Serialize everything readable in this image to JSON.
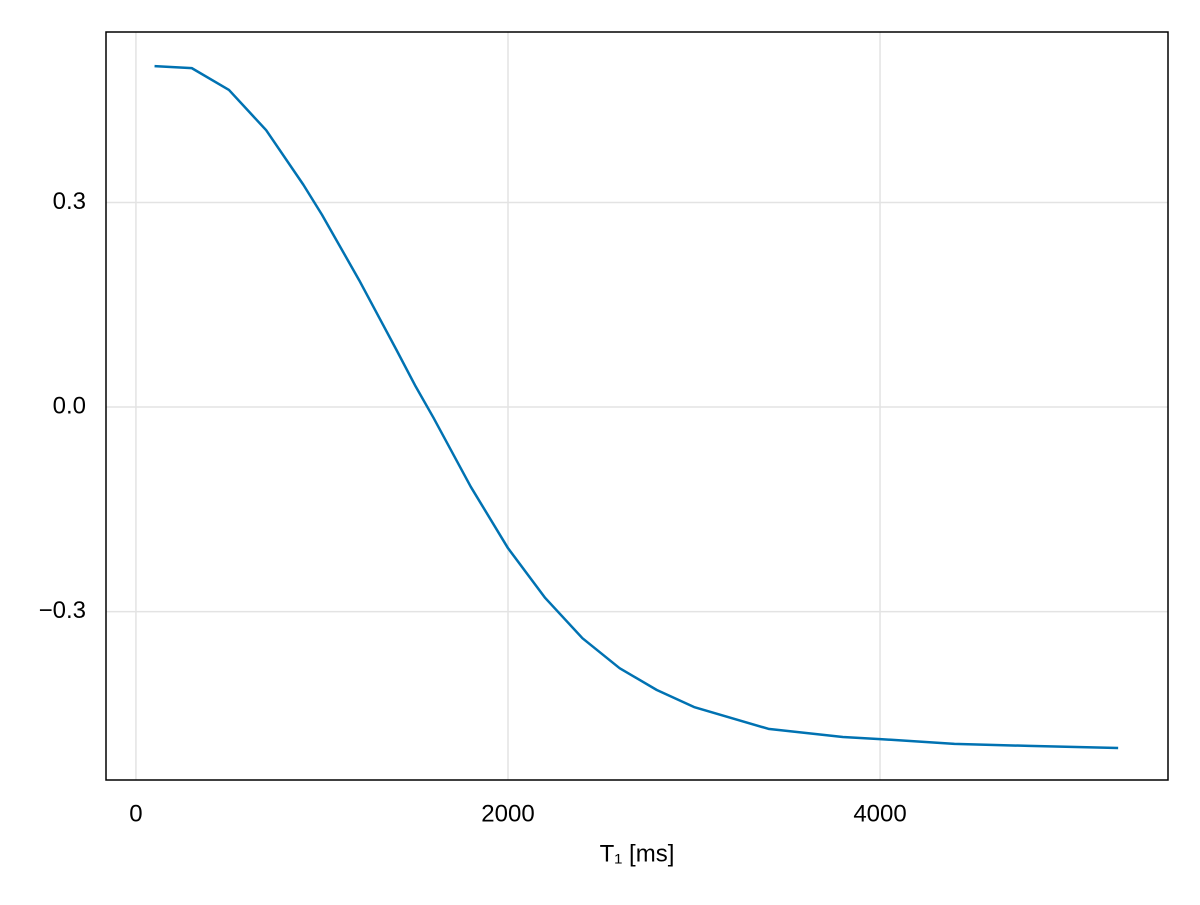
{
  "chart_data": {
    "type": "line",
    "x_label": "T₁ [ms]",
    "x": [
      100,
      300,
      500,
      700,
      900,
      1000,
      1200,
      1400,
      1500,
      1600,
      1800,
      2000,
      2200,
      2400,
      2600,
      2800,
      3000,
      3400,
      3800,
      4000,
      4400,
      4800,
      5280
    ],
    "series": [
      {
        "color": "#0072b2",
        "values": [
          0.5,
          0.497,
          0.465,
          0.406,
          0.326,
          0.282,
          0.186,
          0.084,
          0.032,
          -0.016,
          -0.117,
          -0.207,
          -0.28,
          -0.339,
          -0.383,
          -0.415,
          -0.44,
          -0.472,
          -0.484,
          -0.487,
          -0.494,
          -0.497,
          -0.5
        ]
      }
    ],
    "xlim": [
      -161,
      5548
    ],
    "ylim": [
      -0.547,
      0.55
    ],
    "xticks": [
      0,
      2000,
      4000
    ],
    "yticks": [
      {
        "value": -0.3,
        "label": "−0.3"
      },
      {
        "value": 0,
        "label": "0.0"
      },
      0.3
    ],
    "grid": true
  }
}
